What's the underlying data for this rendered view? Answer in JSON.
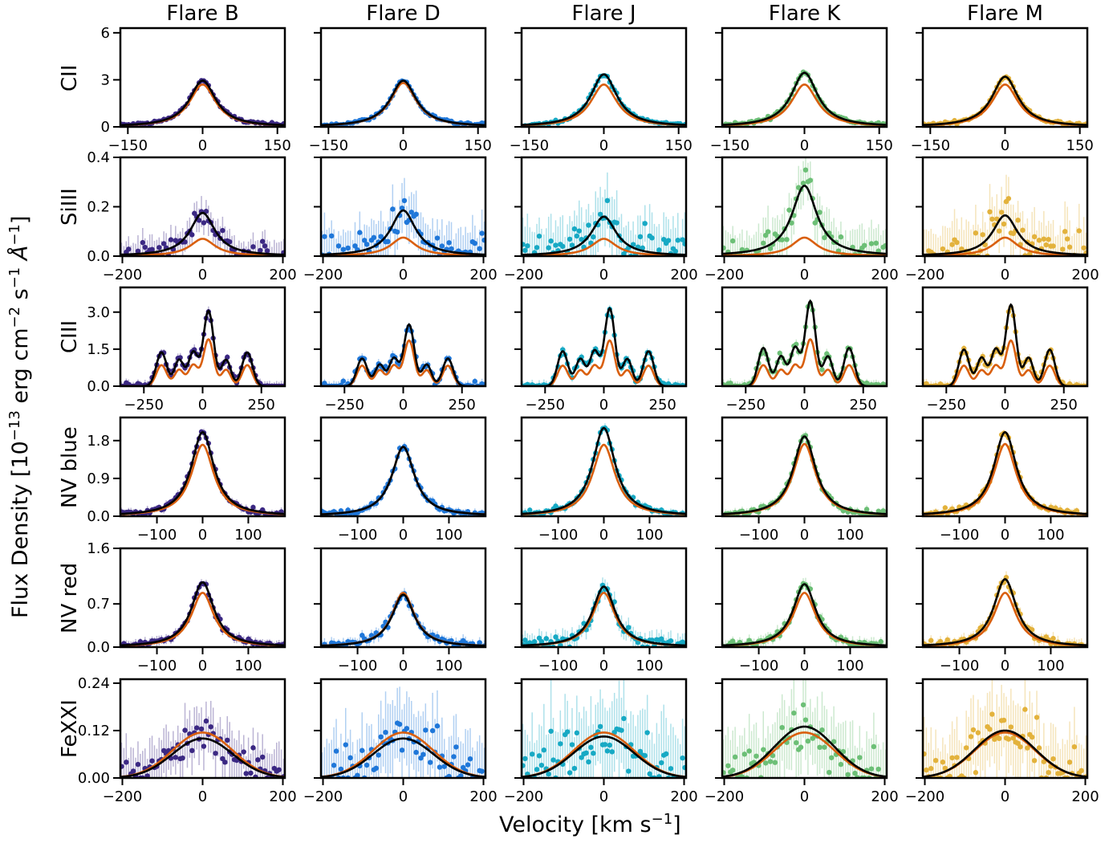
{
  "figure": {
    "ylabel_html": "Flux Density [10<sup style=\"font-size:18px\">−13</sup> erg cm<sup style=\"font-size:18px\">−2</sup> s<sup style=\"font-size:18px\">−1</sup> <i>Å</i><sup style=\"font-size:18px\">−1</sup>]",
    "xlabel_html": "Velocity [km s<sup style=\"font-size:18px\">−1</sup>]",
    "columns": [
      "Flare B",
      "Flare D",
      "Flare J",
      "Flare K",
      "Flare M"
    ],
    "rows": [
      "CII",
      "SiIII",
      "CIII",
      "NV blue",
      "NV red",
      "FeXXI"
    ],
    "colors": {
      "Flare B": "#3b2883",
      "Flare D": "#1f77d9",
      "Flare J": "#17a9c4",
      "Flare K": "#6cbf76",
      "Flare M": "#e3b23c",
      "model_total": "#000000",
      "model_component": "#d95f0e"
    }
  },
  "chart_data": [
    {
      "type": "line",
      "row": "CII",
      "ylabel": "CII",
      "xlabel": "",
      "xlim": [
        -165,
        165
      ],
      "ylim": [
        0,
        6.3
      ],
      "xticks": [
        -150,
        0,
        150
      ],
      "yticks": [
        0,
        3,
        6
      ],
      "ytick_labels": [
        "0",
        "3",
        "6"
      ],
      "components": [
        {
          "center": 0,
          "width": 32,
          "shape": "lorentz"
        }
      ],
      "series": [
        {
          "name": "Flare B",
          "total_peak": 2.95,
          "component_peak": 2.7,
          "noise": 0.08
        },
        {
          "name": "Flare D",
          "total_peak": 2.95,
          "component_peak": 2.8,
          "noise": 0.08
        },
        {
          "name": "Flare J",
          "total_peak": 3.35,
          "component_peak": 2.7,
          "noise": 0.08
        },
        {
          "name": "Flare K",
          "total_peak": 3.45,
          "component_peak": 2.7,
          "noise": 0.08
        },
        {
          "name": "Flare M",
          "total_peak": 3.2,
          "component_peak": 2.7,
          "noise": 0.08
        }
      ]
    },
    {
      "type": "line",
      "row": "SiIII",
      "ylabel": "SiIII",
      "xlabel": "",
      "xlim": [
        -205,
        205
      ],
      "ylim": [
        0,
        0.4
      ],
      "xticks": [
        -200,
        0,
        200
      ],
      "yticks": [
        0,
        0.2,
        0.4
      ],
      "ytick_labels": [
        "0.0",
        "0.2",
        "0.4"
      ],
      "components": [
        {
          "center": 0,
          "width": 38,
          "shape": "lorentz"
        }
      ],
      "series": [
        {
          "name": "Flare B",
          "total_peak": 0.175,
          "component_peak": 0.07,
          "noise": 0.03
        },
        {
          "name": "Flare D",
          "total_peak": 0.185,
          "component_peak": 0.075,
          "noise": 0.05
        },
        {
          "name": "Flare J",
          "total_peak": 0.16,
          "component_peak": 0.07,
          "noise": 0.06
        },
        {
          "name": "Flare K",
          "total_peak": 0.285,
          "component_peak": 0.075,
          "noise": 0.05
        },
        {
          "name": "Flare M",
          "total_peak": 0.165,
          "component_peak": 0.075,
          "noise": 0.06
        }
      ]
    },
    {
      "type": "line",
      "row": "CIII",
      "ylabel": "CIII",
      "xlabel": "",
      "xlim": [
        -350,
        350
      ],
      "ylim": [
        0,
        4.0
      ],
      "xticks": [
        -250,
        0,
        250
      ],
      "yticks": [
        0,
        1.5,
        3.0
      ],
      "ytick_labels": [
        "0.0",
        "1.5",
        "3.0"
      ],
      "components": [
        {
          "center": -175,
          "width": 22,
          "shape": "gauss",
          "weight": 0.45
        },
        {
          "center": -100,
          "width": 20,
          "shape": "gauss",
          "weight": 0.35
        },
        {
          "center": -40,
          "width": 20,
          "shape": "gauss",
          "weight": 0.45
        },
        {
          "center": 25,
          "width": 22,
          "shape": "gauss",
          "weight": 1.0
        },
        {
          "center": 100,
          "width": 20,
          "shape": "gauss",
          "weight": 0.35
        },
        {
          "center": 190,
          "width": 22,
          "shape": "gauss",
          "weight": 0.45
        }
      ],
      "series": [
        {
          "name": "Flare B",
          "total_peak": 3.05,
          "component_peak": 1.9,
          "noise": 0.1
        },
        {
          "name": "Flare D",
          "total_peak": 2.5,
          "component_peak": 1.85,
          "noise": 0.1
        },
        {
          "name": "Flare J",
          "total_peak": 3.15,
          "component_peak": 1.85,
          "noise": 0.1
        },
        {
          "name": "Flare K",
          "total_peak": 3.45,
          "component_peak": 1.9,
          "noise": 0.1
        },
        {
          "name": "Flare M",
          "total_peak": 3.3,
          "component_peak": 1.85,
          "noise": 0.1
        }
      ]
    },
    {
      "type": "line",
      "row": "NV blue",
      "ylabel": "NV blue",
      "xlabel": "",
      "xlim": [
        -180,
        180
      ],
      "ylim": [
        0,
        2.35
      ],
      "xticks": [
        -100,
        0,
        100
      ],
      "yticks": [
        0,
        0.9,
        1.8
      ],
      "ytick_labels": [
        "0.0",
        "0.9",
        "1.8"
      ],
      "components": [
        {
          "center": 0,
          "width": 30,
          "shape": "lorentz"
        }
      ],
      "series": [
        {
          "name": "Flare B",
          "total_peak": 2.0,
          "component_peak": 1.7,
          "noise": 0.05
        },
        {
          "name": "Flare D",
          "total_peak": 1.65,
          "component_peak": 1.65,
          "noise": 0.05
        },
        {
          "name": "Flare J",
          "total_peak": 2.1,
          "component_peak": 1.7,
          "noise": 0.05
        },
        {
          "name": "Flare K",
          "total_peak": 1.9,
          "component_peak": 1.72,
          "noise": 0.05
        },
        {
          "name": "Flare M",
          "total_peak": 2.0,
          "component_peak": 1.72,
          "noise": 0.05
        }
      ]
    },
    {
      "type": "line",
      "row": "NV red",
      "ylabel": "NV red",
      "xlabel": "",
      "xlim": [
        -180,
        180
      ],
      "ylim": [
        0,
        1.6
      ],
      "xticks": [
        -100,
        0,
        100
      ],
      "yticks": [
        0,
        0.7,
        1.6
      ],
      "ytick_labels": [
        "0.0",
        "0.7",
        "1.6"
      ],
      "components": [
        {
          "center": 0,
          "width": 30,
          "shape": "lorentz"
        }
      ],
      "series": [
        {
          "name": "Flare B",
          "total_peak": 1.05,
          "component_peak": 0.88,
          "noise": 0.04
        },
        {
          "name": "Flare D",
          "total_peak": 0.85,
          "component_peak": 0.88,
          "noise": 0.05
        },
        {
          "name": "Flare J",
          "total_peak": 0.98,
          "component_peak": 0.88,
          "noise": 0.08
        },
        {
          "name": "Flare K",
          "total_peak": 1.02,
          "component_peak": 0.88,
          "noise": 0.05
        },
        {
          "name": "Flare M",
          "total_peak": 1.1,
          "component_peak": 0.88,
          "noise": 0.05
        }
      ]
    },
    {
      "type": "line",
      "row": "FeXXI",
      "ylabel": "FeXXI",
      "xlabel": "",
      "xlim": [
        -205,
        205
      ],
      "ylim": [
        0,
        0.25
      ],
      "xticks": [
        -200,
        0,
        200
      ],
      "yticks": [
        0,
        0.12,
        0.24
      ],
      "ytick_labels": [
        "0.00",
        "0.12",
        "0.24"
      ],
      "components": [
        {
          "center": 0,
          "width": 75,
          "shape": "gauss"
        }
      ],
      "series": [
        {
          "name": "Flare B",
          "total_peak": 0.1,
          "component_peak": 0.115,
          "noise": 0.035
        },
        {
          "name": "Flare D",
          "total_peak": 0.1,
          "component_peak": 0.115,
          "noise": 0.05
        },
        {
          "name": "Flare J",
          "total_peak": 0.105,
          "component_peak": 0.115,
          "noise": 0.06
        },
        {
          "name": "Flare K",
          "total_peak": 0.13,
          "component_peak": 0.115,
          "noise": 0.05
        },
        {
          "name": "Flare M",
          "total_peak": 0.12,
          "component_peak": 0.115,
          "noise": 0.05
        }
      ]
    }
  ]
}
